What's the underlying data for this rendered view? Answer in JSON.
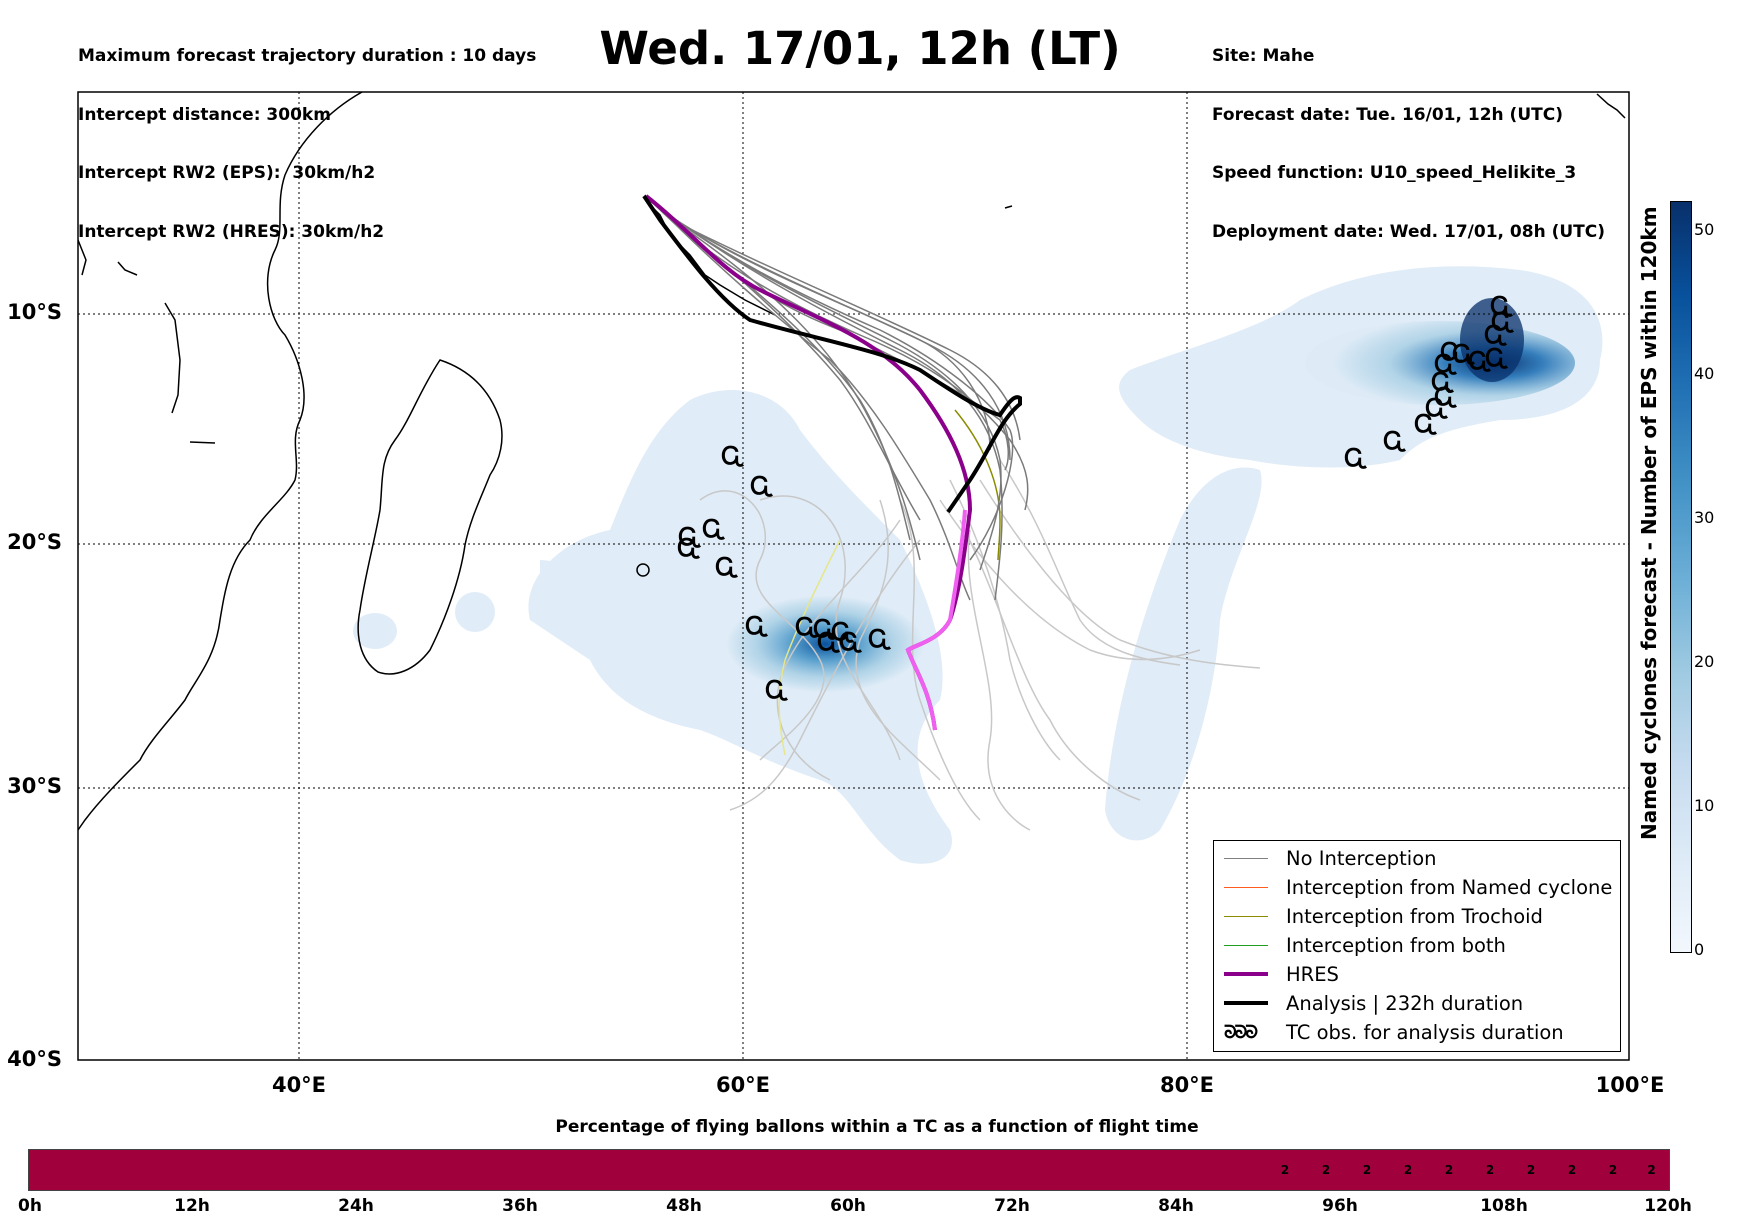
{
  "header": {
    "left_lines": [
      "Maximum forecast trajectory duration : 10 days",
      "Intercept distance: 300km",
      "Intercept RW2 (EPS):  30km/h2",
      "Intercept RW2 (HRES): 30km/h2"
    ],
    "title": "Wed. 17/01, 12h (LT)",
    "right_lines": [
      "Site: Mahe",
      "Forecast date: Tue. 16/01, 12h (UTC)",
      "Speed function: U10_speed_Helikite_3",
      "Deployment date: Wed. 17/01, 08h (UTC)"
    ]
  },
  "map": {
    "lat_labels": [
      "10°S",
      "20°S",
      "30°S",
      "40°S"
    ],
    "lon_labels": [
      "40°E",
      "60°E",
      "80°E",
      "100°E"
    ],
    "lon_range": [
      30,
      100
    ],
    "lat_range": [
      -40,
      1
    ]
  },
  "legend": {
    "items": [
      {
        "label": "No Interception",
        "color": "#808080",
        "width": 1.5
      },
      {
        "label": "Interception from Named cyclone",
        "color": "#ff5a1f",
        "width": 1.5
      },
      {
        "label": "Interception from Trochoid",
        "color": "#8b8b00",
        "width": 1.5
      },
      {
        "label": "Interception from both",
        "color": "#1f9e1f",
        "width": 1.5
      },
      {
        "label": "HRES",
        "color": "#8b008b",
        "width": 4
      },
      {
        "label": "Analysis | 232h duration",
        "color": "#000000",
        "width": 4
      }
    ],
    "tc_symbol": "ᘐᘐᘐ",
    "tc_label": "TC obs. for analysis duration"
  },
  "colorbar": {
    "label": "Named cyclones forecast - Number of EPS within 120km",
    "ticks": [
      "0",
      "10",
      "20",
      "30",
      "40",
      "50"
    ],
    "range": [
      0,
      52
    ]
  },
  "percentage_bar": {
    "title": "Percentage of flying ballons within a TC as a function of flight time",
    "color": "#a0003c",
    "time_labels": [
      "0h",
      "12h",
      "24h",
      "36h",
      "48h",
      "60h",
      "72h",
      "84h",
      "96h",
      "108h",
      "120h"
    ],
    "cell_values": [
      "2",
      "2",
      "2",
      "2",
      "2",
      "2",
      "2",
      "2",
      "2",
      "2"
    ]
  }
}
